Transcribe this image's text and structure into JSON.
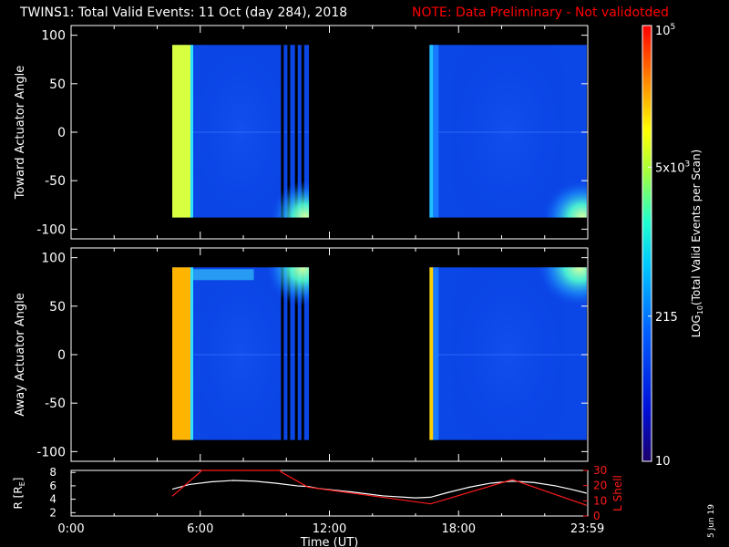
{
  "title": {
    "main": "TWINS1: Total Valid Events: 11 Oct (day 284), 2018",
    "note": "NOTE: Data Preliminary - Not validotded"
  },
  "date_stamp": "5 Jun 19",
  "colors": {
    "background": "#000000",
    "axes": "#ffffff",
    "note": "#ff0000",
    "l_shell": "#ff1a1a",
    "r_line": "#ffffff"
  },
  "chart_data": [
    {
      "type": "heatmap",
      "ylabel": "Toward Actuator Angle",
      "ylim": [
        -110,
        110
      ],
      "yticks": [
        -100,
        -50,
        0,
        50,
        100
      ],
      "x_range_hours": [
        0,
        24
      ],
      "coverage_hours": [
        [
          4.7,
          11.05
        ],
        [
          16.65,
          23.95
        ]
      ],
      "colorscale_range": [
        10,
        100000
      ],
      "description": "Mostly low counts (~100) across angles; high band near start of each pass; enhancement near -80 deg late in passes"
    },
    {
      "type": "heatmap",
      "ylabel": "Away Actuator Angle",
      "ylim": [
        -110,
        110
      ],
      "yticks": [
        -100,
        -50,
        0,
        50,
        100
      ],
      "x_range_hours": [
        0,
        24
      ],
      "coverage_hours": [
        [
          4.7,
          11.05
        ],
        [
          16.65,
          23.95
        ]
      ],
      "colorscale_range": [
        10,
        100000
      ],
      "description": "Mostly low counts; high band near start of each pass; enhancement near +85 deg"
    },
    {
      "type": "line",
      "ylabel": "R [R",
      "ylabel_sub": "E",
      "ylabel_end": "]",
      "ylim": [
        1.5,
        8.3
      ],
      "yticks": [
        2,
        4,
        6,
        8
      ],
      "y2label": "L Shell",
      "y2lim": [
        0,
        30
      ],
      "y2ticks": [
        0,
        10,
        20,
        30
      ],
      "xlabel": "Time (UT)",
      "xticks": [
        "0:00",
        "6:00",
        "12:00",
        "18:00",
        "23:59"
      ],
      "xtick_hours": [
        0,
        6,
        12,
        18,
        23.983
      ],
      "series": [
        {
          "name": "R",
          "x": [
            4.7,
            5.5,
            6.5,
            7.5,
            8.5,
            9.5,
            10.5,
            11.0,
            11.5,
            13,
            14.5,
            16,
            16.7,
            17.5,
            18.5,
            19.5,
            20.5,
            21.5,
            22.5,
            23.2,
            23.95
          ],
          "y": [
            5.5,
            6.2,
            6.6,
            6.8,
            6.7,
            6.4,
            6.0,
            5.9,
            5.6,
            5.1,
            4.5,
            4.2,
            4.3,
            5.0,
            5.8,
            6.4,
            6.7,
            6.5,
            6.0,
            5.5,
            4.9
          ]
        },
        {
          "name": "L Shell",
          "x": [
            4.7,
            6.0,
            6.05,
            9.7,
            9.75,
            11.0,
            16.7,
            20.5,
            23.95
          ],
          "y": [
            13,
            29,
            30,
            30,
            29,
            19,
            8,
            24,
            7
          ]
        }
      ]
    }
  ],
  "colorbar": {
    "label_main": "LOG",
    "label_sub": "10",
    "label_rest": "(Total Valid Events per Scan)",
    "ticks": [
      {
        "value": 10,
        "label": "10",
        "sup": ""
      },
      {
        "value": 215,
        "label": "215",
        "sup": ""
      },
      {
        "value": 5000,
        "label": "5x10",
        "sup": "3"
      },
      {
        "value": 100000,
        "label": "10",
        "sup": "5"
      }
    ],
    "range": [
      10,
      100000
    ]
  }
}
